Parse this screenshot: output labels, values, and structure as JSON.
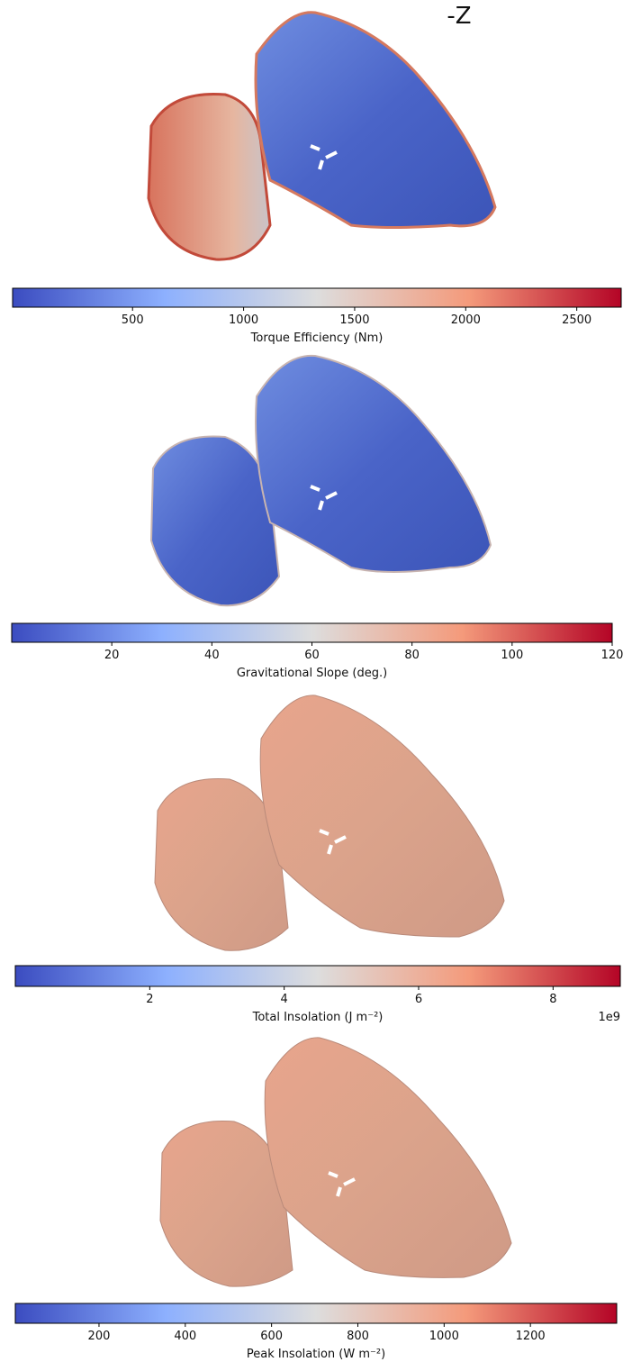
{
  "chart_data": [
    {
      "type": "colorbar",
      "annotation": "-Z",
      "label": "Torque Efficiency (Nm)",
      "xlim": [
        -40,
        2700
      ],
      "xticks": [
        500,
        1000,
        1500,
        2000,
        2500
      ],
      "colors": [
        "#3b4cc0",
        "#8db0fe",
        "#dddddd",
        "#f49a7b",
        "#b40426"
      ]
    },
    {
      "type": "colorbar",
      "label": "Gravitational Slope (deg.)",
      "xlim": [
        0,
        120
      ],
      "xticks": [
        20,
        40,
        60,
        80,
        100,
        120
      ],
      "colors": [
        "#3b4cc0",
        "#8db0fe",
        "#dddddd",
        "#f49a7b",
        "#b40426"
      ]
    },
    {
      "type": "colorbar",
      "label": "Total Insolation (J m⁻²)",
      "offset_label": "1e9",
      "xlim": [
        0,
        9
      ],
      "xticks": [
        2,
        4,
        6,
        8
      ],
      "colors": [
        "#3b4cc0",
        "#8db0fe",
        "#dddddd",
        "#f49a7b",
        "#b40426"
      ]
    },
    {
      "type": "colorbar",
      "label": "Peak Insolation (W m⁻²)",
      "xlim": [
        6,
        1400
      ],
      "xticks": [
        200,
        400,
        600,
        800,
        1000,
        1200
      ],
      "colors": [
        "#3b4cc0",
        "#8db0fe",
        "#dddddd",
        "#f49a7b",
        "#b40426"
      ]
    }
  ]
}
